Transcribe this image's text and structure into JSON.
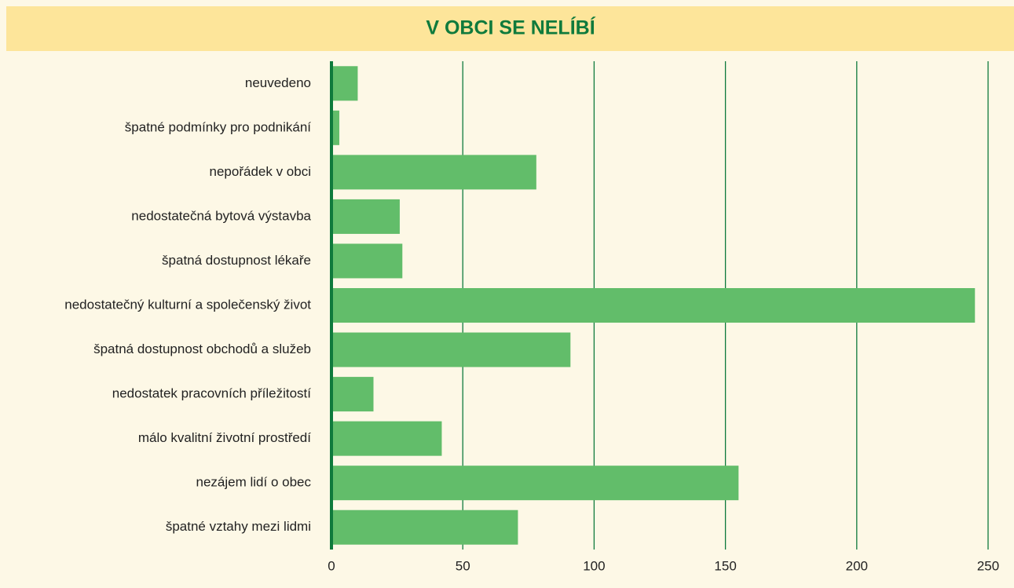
{
  "chart_data": {
    "type": "bar",
    "orientation": "horizontal",
    "title": "V OBCI SE NELÍBÍ",
    "categories": [
      "neuvedeno",
      "špatné podmínky pro podnikání",
      "nepořádek v obci",
      "nedostatečná bytová výstavba",
      "špatná dostupnost lékaře",
      "nedostatečný kulturní a společenský život",
      "špatná dostupnost obchodů a služeb",
      "nedostatek pracovních příležitostí",
      "málo kvalitní životní prostředí",
      "nezájem lidí o obec",
      "špatné vztahy mezi lidmi"
    ],
    "values": [
      10,
      3,
      78,
      26,
      27,
      245,
      91,
      16,
      42,
      155,
      71
    ],
    "color": "#62bd6a",
    "grid_color": "#0f7a3c",
    "xlim": [
      0,
      250
    ],
    "xticks": [
      0,
      50,
      100,
      150,
      200,
      250
    ],
    "grid": true
  }
}
